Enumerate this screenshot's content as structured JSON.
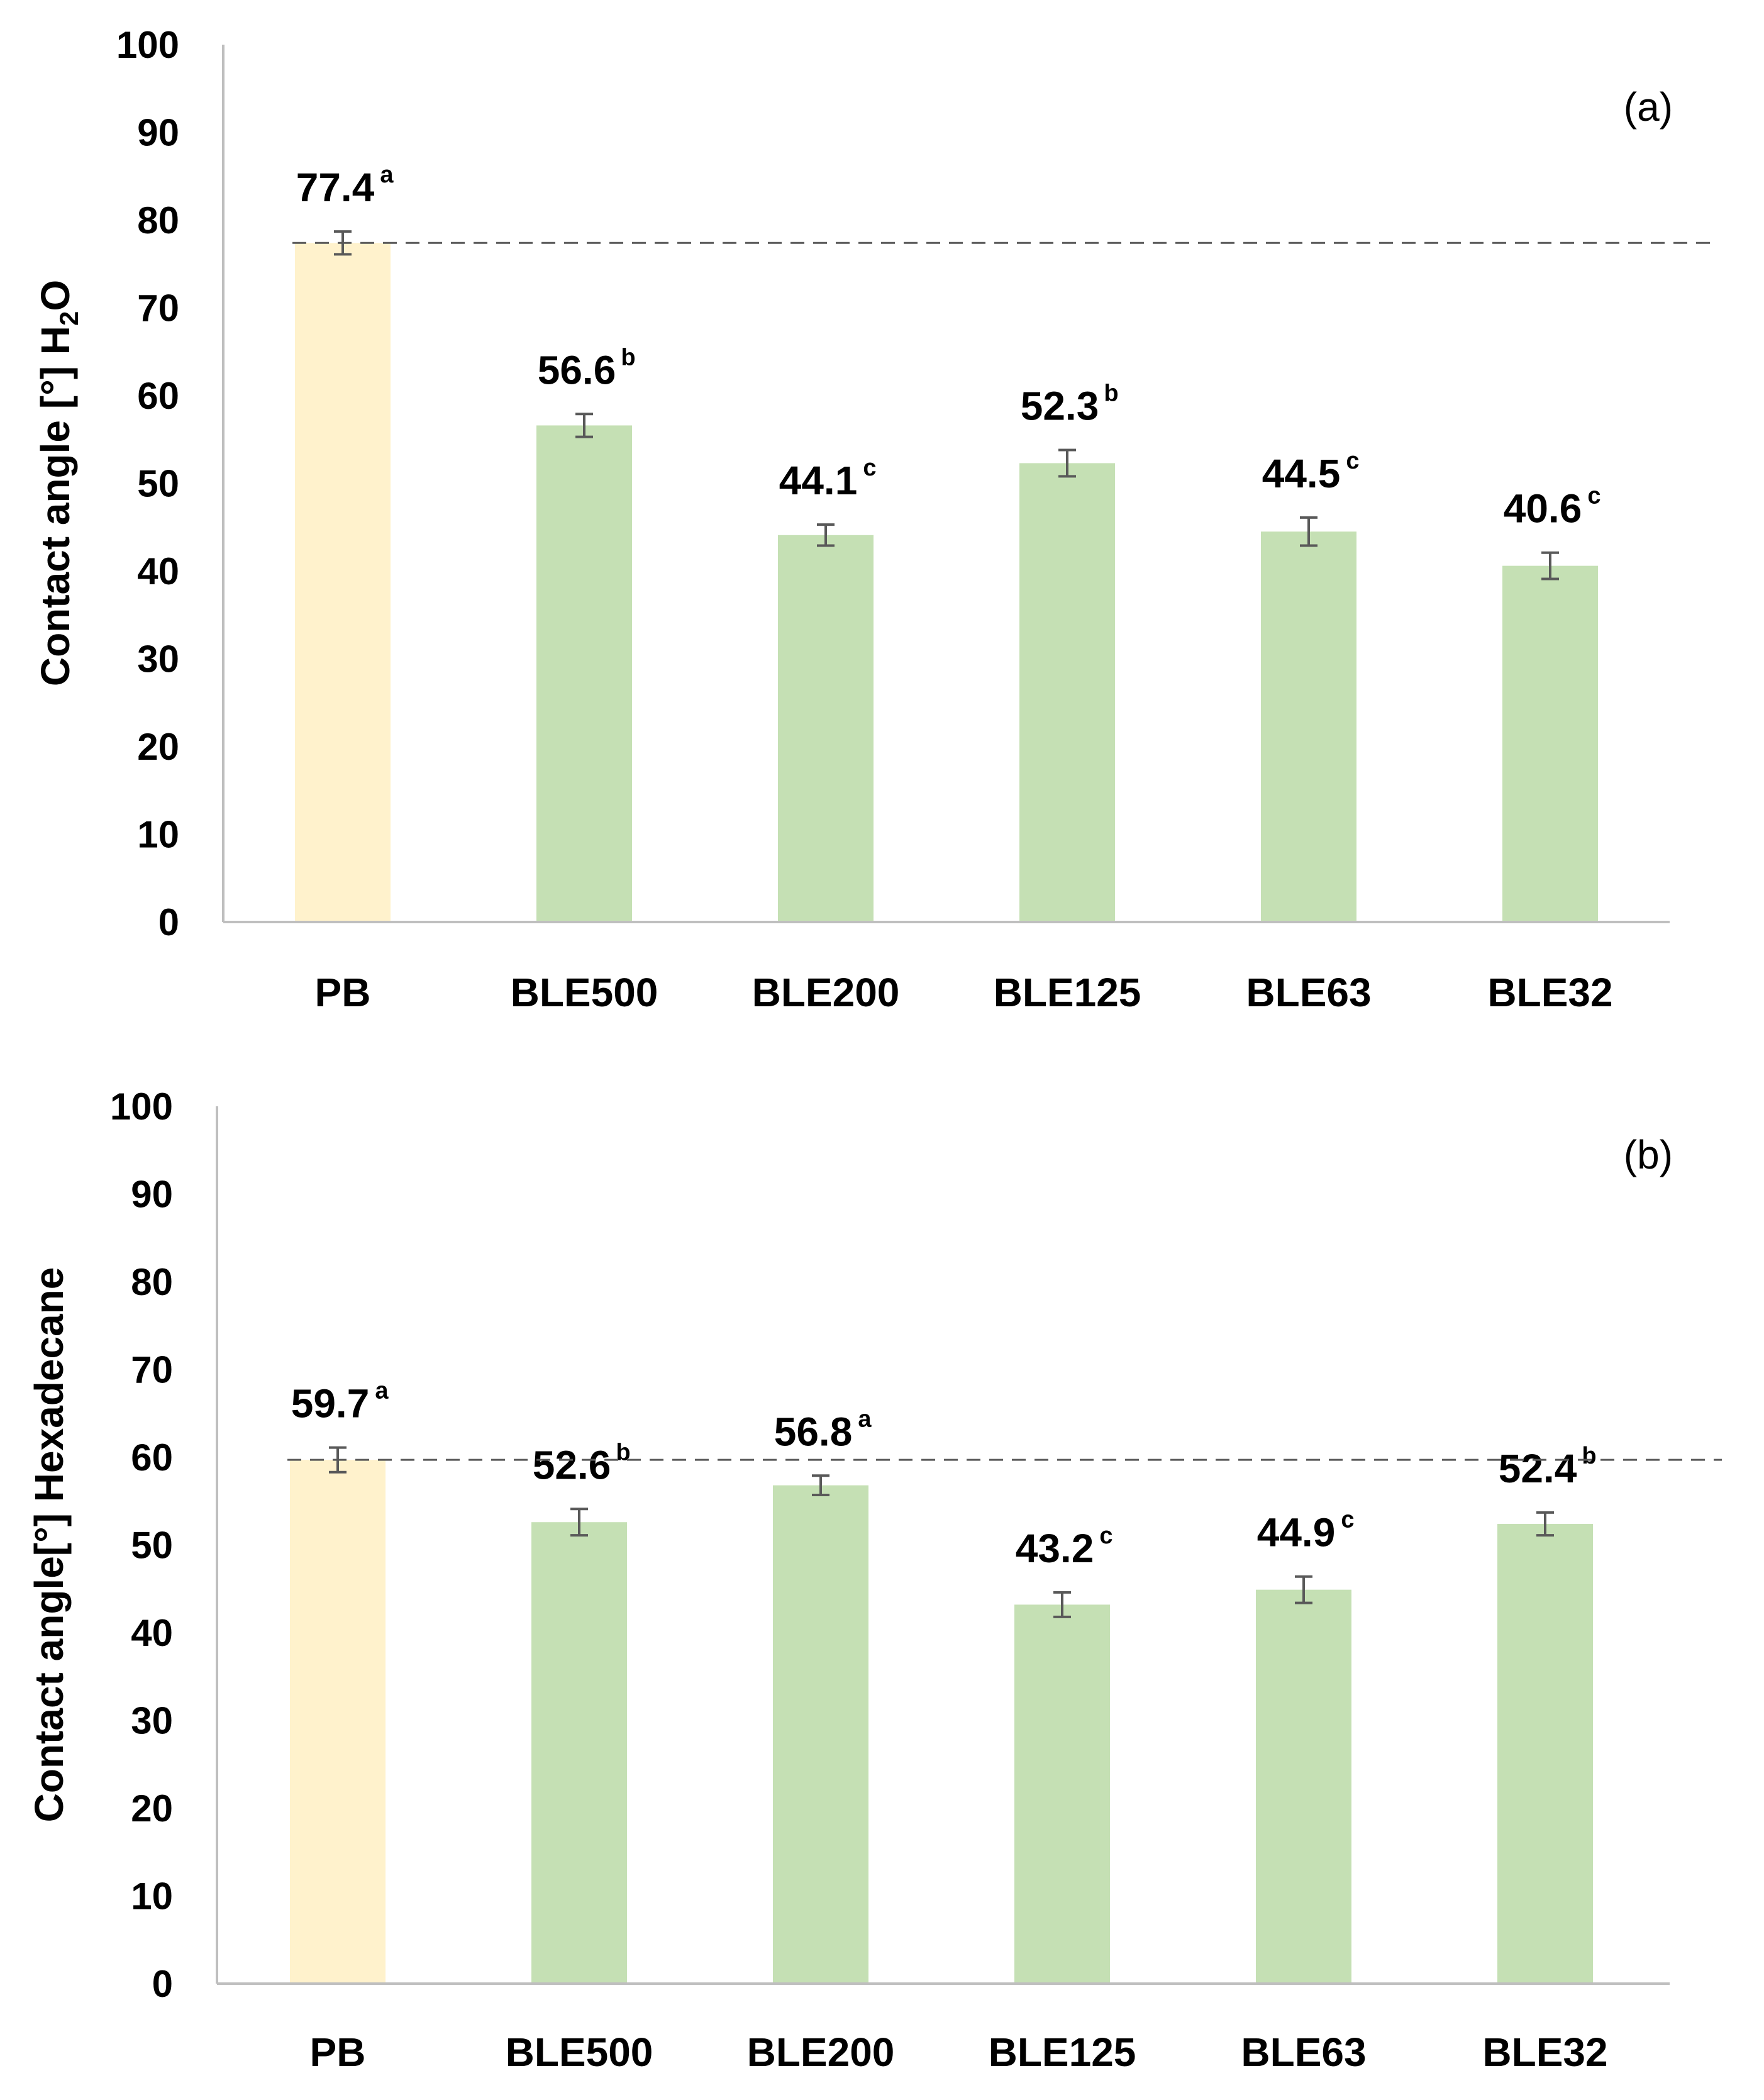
{
  "chart_data": [
    {
      "type": "bar",
      "panel_label": "(a)",
      "ylabel": {
        "prefix": "Contact angle [°] H",
        "subscript": "2",
        "suffix": "O"
      },
      "ylim": [
        0,
        100
      ],
      "yticks": [
        0,
        10,
        20,
        30,
        40,
        50,
        60,
        70,
        80,
        90,
        100
      ],
      "categories": [
        "PB",
        "BLE500",
        "BLE200",
        "BLE125",
        "BLE63",
        "BLE32"
      ],
      "values": [
        77.4,
        56.6,
        44.1,
        52.3,
        44.5,
        40.6
      ],
      "value_labels": [
        "77.4",
        "56.6",
        "44.1",
        "52.3",
        "44.5",
        "40.6"
      ],
      "errors": [
        1.3,
        1.3,
        1.2,
        1.5,
        1.6,
        1.5
      ],
      "significance": [
        "a",
        "b",
        "c",
        "b",
        "c",
        "c"
      ],
      "reference_line": 77.4,
      "bar_colors": [
        "#fff2cc",
        "#c5e0b4",
        "#c5e0b4",
        "#c5e0b4",
        "#c5e0b4",
        "#c5e0b4"
      ],
      "grid": false
    },
    {
      "type": "bar",
      "panel_label": "(b)",
      "ylabel": {
        "prefix": "Contact angle[°] Hexadecane",
        "subscript": "",
        "suffix": ""
      },
      "ylim": [
        0,
        100
      ],
      "yticks": [
        0,
        10,
        20,
        30,
        40,
        50,
        60,
        70,
        80,
        90,
        100
      ],
      "categories": [
        "PB",
        "BLE500",
        "BLE200",
        "BLE125",
        "BLE63",
        "BLE32"
      ],
      "values": [
        59.7,
        52.6,
        56.8,
        43.2,
        44.9,
        52.4
      ],
      "value_labels": [
        "59.7",
        "52.6",
        "56.8",
        "43.2",
        "44.9",
        "52.4"
      ],
      "errors": [
        1.4,
        1.5,
        1.1,
        1.4,
        1.5,
        1.3
      ],
      "significance": [
        "a",
        "b",
        "a",
        "c",
        "c",
        "b"
      ],
      "reference_line": 59.7,
      "bar_colors": [
        "#fff2cc",
        "#c5e0b4",
        "#c5e0b4",
        "#c5e0b4",
        "#c5e0b4",
        "#c5e0b4"
      ],
      "grid": false
    }
  ],
  "colors": {
    "axis": "#bfbfbf",
    "reference_line": "#595959",
    "error_bar": "#595959",
    "text": "#000000"
  }
}
